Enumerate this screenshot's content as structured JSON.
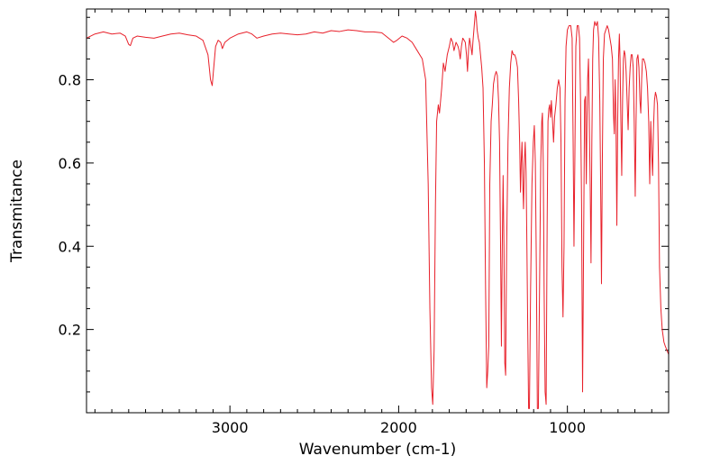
{
  "chart_data": {
    "type": "line",
    "title": "",
    "xlabel": "Wavenumber (cm-1)",
    "ylabel": "Transmitance",
    "xlim": [
      3850,
      400
    ],
    "ylim": [
      0.0,
      0.97
    ],
    "x_reversed": true,
    "grid": false,
    "legend": "none",
    "x_ticks": [
      {
        "value": 3000,
        "label": "3000"
      },
      {
        "value": 2000,
        "label": "2000"
      },
      {
        "value": 1000,
        "label": "1000"
      }
    ],
    "y_ticks": [
      {
        "value": 0.2,
        "label": "0.2"
      },
      {
        "value": 0.4,
        "label": "0.4"
      },
      {
        "value": 0.6,
        "label": "0.6"
      },
      {
        "value": 0.8,
        "label": "0.8"
      }
    ],
    "line_color": "#e8202a",
    "series": [
      {
        "points": [
          [
            3850,
            0.9
          ],
          [
            3800,
            0.91
          ],
          [
            3750,
            0.915
          ],
          [
            3700,
            0.91
          ],
          [
            3650,
            0.912
          ],
          [
            3620,
            0.905
          ],
          [
            3600,
            0.885
          ],
          [
            3590,
            0.882
          ],
          [
            3575,
            0.9
          ],
          [
            3550,
            0.905
          ],
          [
            3500,
            0.902
          ],
          [
            3450,
            0.9
          ],
          [
            3400,
            0.905
          ],
          [
            3350,
            0.91
          ],
          [
            3300,
            0.912
          ],
          [
            3250,
            0.908
          ],
          [
            3200,
            0.905
          ],
          [
            3160,
            0.895
          ],
          [
            3130,
            0.86
          ],
          [
            3115,
            0.8
          ],
          [
            3105,
            0.786
          ],
          [
            3098,
            0.82
          ],
          [
            3085,
            0.88
          ],
          [
            3070,
            0.895
          ],
          [
            3055,
            0.89
          ],
          [
            3045,
            0.875
          ],
          [
            3030,
            0.89
          ],
          [
            3000,
            0.9
          ],
          [
            2950,
            0.91
          ],
          [
            2900,
            0.915
          ],
          [
            2870,
            0.91
          ],
          [
            2840,
            0.9
          ],
          [
            2800,
            0.905
          ],
          [
            2750,
            0.91
          ],
          [
            2700,
            0.912
          ],
          [
            2650,
            0.91
          ],
          [
            2600,
            0.908
          ],
          [
            2550,
            0.91
          ],
          [
            2500,
            0.915
          ],
          [
            2450,
            0.912
          ],
          [
            2400,
            0.918
          ],
          [
            2350,
            0.916
          ],
          [
            2300,
            0.92
          ],
          [
            2250,
            0.918
          ],
          [
            2200,
            0.915
          ],
          [
            2150,
            0.915
          ],
          [
            2100,
            0.913
          ],
          [
            2060,
            0.9
          ],
          [
            2030,
            0.89
          ],
          [
            2010,
            0.895
          ],
          [
            1980,
            0.905
          ],
          [
            1950,
            0.9
          ],
          [
            1920,
            0.89
          ],
          [
            1890,
            0.87
          ],
          [
            1860,
            0.85
          ],
          [
            1840,
            0.8
          ],
          [
            1825,
            0.55
          ],
          [
            1815,
            0.25
          ],
          [
            1805,
            0.06
          ],
          [
            1798,
            0.02
          ],
          [
            1790,
            0.15
          ],
          [
            1782,
            0.5
          ],
          [
            1775,
            0.7
          ],
          [
            1765,
            0.74
          ],
          [
            1758,
            0.72
          ],
          [
            1745,
            0.78
          ],
          [
            1735,
            0.84
          ],
          [
            1725,
            0.82
          ],
          [
            1712,
            0.86
          ],
          [
            1700,
            0.88
          ],
          [
            1690,
            0.9
          ],
          [
            1680,
            0.89
          ],
          [
            1672,
            0.87
          ],
          [
            1660,
            0.89
          ],
          [
            1648,
            0.88
          ],
          [
            1642,
            0.87
          ],
          [
            1635,
            0.85
          ],
          [
            1628,
            0.88
          ],
          [
            1620,
            0.9
          ],
          [
            1612,
            0.895
          ],
          [
            1605,
            0.89
          ],
          [
            1598,
            0.86
          ],
          [
            1592,
            0.82
          ],
          [
            1586,
            0.87
          ],
          [
            1580,
            0.9
          ],
          [
            1572,
            0.88
          ],
          [
            1565,
            0.86
          ],
          [
            1560,
            0.89
          ],
          [
            1552,
            0.93
          ],
          [
            1545,
            0.965
          ],
          [
            1540,
            0.95
          ],
          [
            1535,
            0.92
          ],
          [
            1528,
            0.9
          ],
          [
            1522,
            0.89
          ],
          [
            1515,
            0.86
          ],
          [
            1508,
            0.83
          ],
          [
            1500,
            0.78
          ],
          [
            1492,
            0.6
          ],
          [
            1485,
            0.3
          ],
          [
            1478,
            0.06
          ],
          [
            1472,
            0.1
          ],
          [
            1466,
            0.16
          ],
          [
            1460,
            0.55
          ],
          [
            1452,
            0.7
          ],
          [
            1445,
            0.74
          ],
          [
            1438,
            0.79
          ],
          [
            1430,
            0.81
          ],
          [
            1422,
            0.82
          ],
          [
            1415,
            0.81
          ],
          [
            1408,
            0.75
          ],
          [
            1402,
            0.65
          ],
          [
            1396,
            0.4
          ],
          [
            1391,
            0.16
          ],
          [
            1386,
            0.4
          ],
          [
            1381,
            0.57
          ],
          [
            1376,
            0.4
          ],
          [
            1371,
            0.12
          ],
          [
            1366,
            0.09
          ],
          [
            1360,
            0.4
          ],
          [
            1352,
            0.65
          ],
          [
            1344,
            0.78
          ],
          [
            1336,
            0.84
          ],
          [
            1328,
            0.87
          ],
          [
            1320,
            0.86
          ],
          [
            1312,
            0.86
          ],
          [
            1304,
            0.85
          ],
          [
            1296,
            0.83
          ],
          [
            1289,
            0.75
          ],
          [
            1283,
            0.65
          ],
          [
            1278,
            0.53
          ],
          [
            1274,
            0.6
          ],
          [
            1269,
            0.65
          ],
          [
            1264,
            0.55
          ],
          [
            1260,
            0.49
          ],
          [
            1255,
            0.6
          ],
          [
            1250,
            0.65
          ],
          [
            1245,
            0.58
          ],
          [
            1240,
            0.4
          ],
          [
            1235,
            0.2
          ],
          [
            1230,
            0.01
          ],
          [
            1225,
            0.01
          ],
          [
            1218,
            0.3
          ],
          [
            1210,
            0.55
          ],
          [
            1202,
            0.65
          ],
          [
            1196,
            0.69
          ],
          [
            1190,
            0.6
          ],
          [
            1184,
            0.35
          ],
          [
            1178,
            0.01
          ],
          [
            1172,
            0.01
          ],
          [
            1165,
            0.3
          ],
          [
            1158,
            0.6
          ],
          [
            1152,
            0.7
          ],
          [
            1148,
            0.72
          ],
          [
            1143,
            0.6
          ],
          [
            1138,
            0.3
          ],
          [
            1132,
            0.05
          ],
          [
            1126,
            0.02
          ],
          [
            1120,
            0.45
          ],
          [
            1115,
            0.7
          ],
          [
            1110,
            0.73
          ],
          [
            1105,
            0.74
          ],
          [
            1100,
            0.71
          ],
          [
            1095,
            0.75
          ],
          [
            1088,
            0.7
          ],
          [
            1082,
            0.65
          ],
          [
            1076,
            0.71
          ],
          [
            1068,
            0.74
          ],
          [
            1060,
            0.78
          ],
          [
            1052,
            0.8
          ],
          [
            1044,
            0.78
          ],
          [
            1038,
            0.65
          ],
          [
            1032,
            0.35
          ],
          [
            1026,
            0.23
          ],
          [
            1020,
            0.4
          ],
          [
            1014,
            0.75
          ],
          [
            1008,
            0.88
          ],
          [
            1000,
            0.92
          ],
          [
            990,
            0.93
          ],
          [
            980,
            0.93
          ],
          [
            972,
            0.9
          ],
          [
            966,
            0.65
          ],
          [
            961,
            0.4
          ],
          [
            956,
            0.6
          ],
          [
            950,
            0.88
          ],
          [
            942,
            0.93
          ],
          [
            935,
            0.93
          ],
          [
            928,
            0.9
          ],
          [
            922,
            0.75
          ],
          [
            916,
            0.5
          ],
          [
            910,
            0.05
          ],
          [
            904,
            0.4
          ],
          [
            898,
            0.75
          ],
          [
            893,
            0.76
          ],
          [
            888,
            0.55
          ],
          [
            884,
            0.7
          ],
          [
            880,
            0.8
          ],
          [
            875,
            0.85
          ],
          [
            870,
            0.7
          ],
          [
            865,
            0.55
          ],
          [
            860,
            0.36
          ],
          [
            855,
            0.65
          ],
          [
            850,
            0.85
          ],
          [
            845,
            0.92
          ],
          [
            838,
            0.94
          ],
          [
            830,
            0.93
          ],
          [
            822,
            0.94
          ],
          [
            815,
            0.9
          ],
          [
            808,
            0.75
          ],
          [
            803,
            0.55
          ],
          [
            798,
            0.31
          ],
          [
            793,
            0.6
          ],
          [
            787,
            0.85
          ],
          [
            780,
            0.91
          ],
          [
            772,
            0.92
          ],
          [
            764,
            0.93
          ],
          [
            756,
            0.92
          ],
          [
            748,
            0.9
          ],
          [
            740,
            0.88
          ],
          [
            733,
            0.85
          ],
          [
            727,
            0.72
          ],
          [
            722,
            0.67
          ],
          [
            717,
            0.8
          ],
          [
            712,
            0.7
          ],
          [
            707,
            0.45
          ],
          [
            702,
            0.7
          ],
          [
            697,
            0.85
          ],
          [
            692,
            0.91
          ],
          [
            688,
            0.85
          ],
          [
            683,
            0.7
          ],
          [
            678,
            0.57
          ],
          [
            673,
            0.75
          ],
          [
            668,
            0.85
          ],
          [
            663,
            0.87
          ],
          [
            658,
            0.86
          ],
          [
            652,
            0.82
          ],
          [
            646,
            0.75
          ],
          [
            640,
            0.68
          ],
          [
            634,
            0.78
          ],
          [
            628,
            0.83
          ],
          [
            622,
            0.86
          ],
          [
            616,
            0.86
          ],
          [
            610,
            0.83
          ],
          [
            604,
            0.7
          ],
          [
            598,
            0.52
          ],
          [
            593,
            0.7
          ],
          [
            588,
            0.85
          ],
          [
            582,
            0.86
          ],
          [
            576,
            0.83
          ],
          [
            570,
            0.75
          ],
          [
            565,
            0.72
          ],
          [
            560,
            0.8
          ],
          [
            555,
            0.85
          ],
          [
            548,
            0.85
          ],
          [
            540,
            0.84
          ],
          [
            532,
            0.82
          ],
          [
            525,
            0.78
          ],
          [
            518,
            0.7
          ],
          [
            512,
            0.55
          ],
          [
            506,
            0.7
          ],
          [
            500,
            0.62
          ],
          [
            495,
            0.57
          ],
          [
            490,
            0.68
          ],
          [
            484,
            0.75
          ],
          [
            478,
            0.77
          ],
          [
            472,
            0.76
          ],
          [
            466,
            0.74
          ],
          [
            460,
            0.6
          ],
          [
            454,
            0.35
          ],
          [
            446,
            0.25
          ],
          [
            438,
            0.2
          ],
          [
            428,
            0.17
          ],
          [
            420,
            0.16
          ],
          [
            410,
            0.15
          ],
          [
            400,
            0.14
          ]
        ]
      }
    ]
  }
}
